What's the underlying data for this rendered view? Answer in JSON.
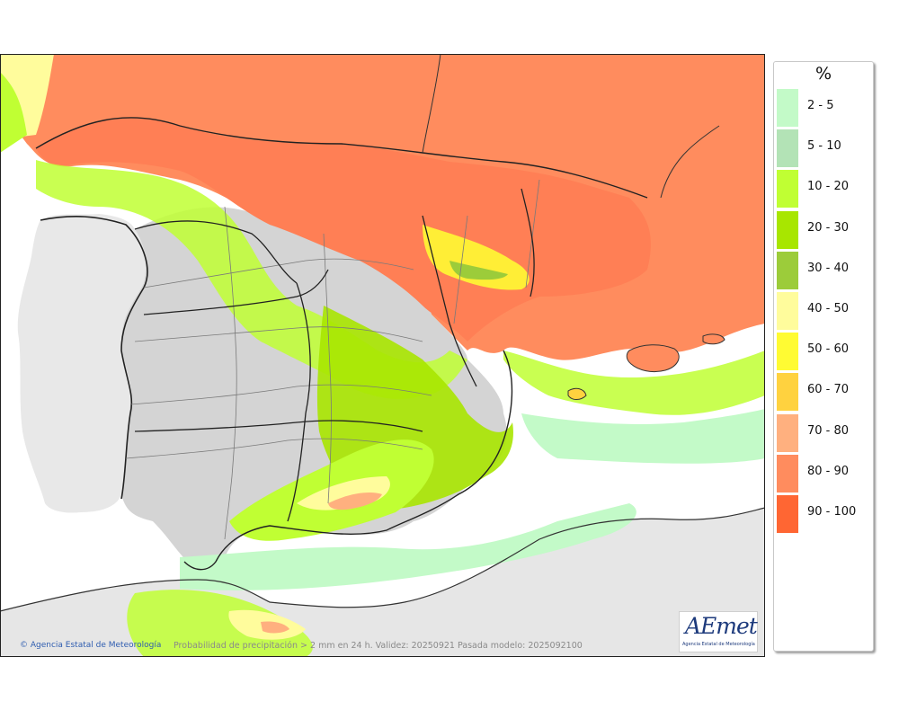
{
  "legend": {
    "title": "%",
    "items": [
      {
        "label": "2 - 5",
        "color": "#c3fac8"
      },
      {
        "label": "5 - 10",
        "color": "#b3e3b6"
      },
      {
        "label": "10 - 20",
        "color": "#c0ff33"
      },
      {
        "label": "20 - 30",
        "color": "#a8e600"
      },
      {
        "label": "30 - 40",
        "color": "#9ccc3a"
      },
      {
        "label": "40 - 50",
        "color": "#fffc9c"
      },
      {
        "label": "50 - 60",
        "color": "#fffb33"
      },
      {
        "label": "60 - 70",
        "color": "#ffd23f"
      },
      {
        "label": "70 - 80",
        "color": "#ffb07f"
      },
      {
        "label": "80 - 90",
        "color": "#ff8c5e"
      },
      {
        "label": "90 - 100",
        "color": "#ff6633"
      }
    ]
  },
  "footer": {
    "agency": "Agencia Estatal de Meteorología",
    "caption": "Probabilidad de precipitación > 2 mm en 24 h. Validez: 20250921 Pasada modelo: 2025092100"
  },
  "logo": {
    "wordmark": "AEmet",
    "subtitle": "Agencia Estatal de Meteorología"
  },
  "colors": {
    "land_dry": "#d9d9d9",
    "portugal": "#e8e8e8",
    "sea": "#ffffff",
    "borders": "#222222",
    "provinces": "#8a8a8a"
  }
}
